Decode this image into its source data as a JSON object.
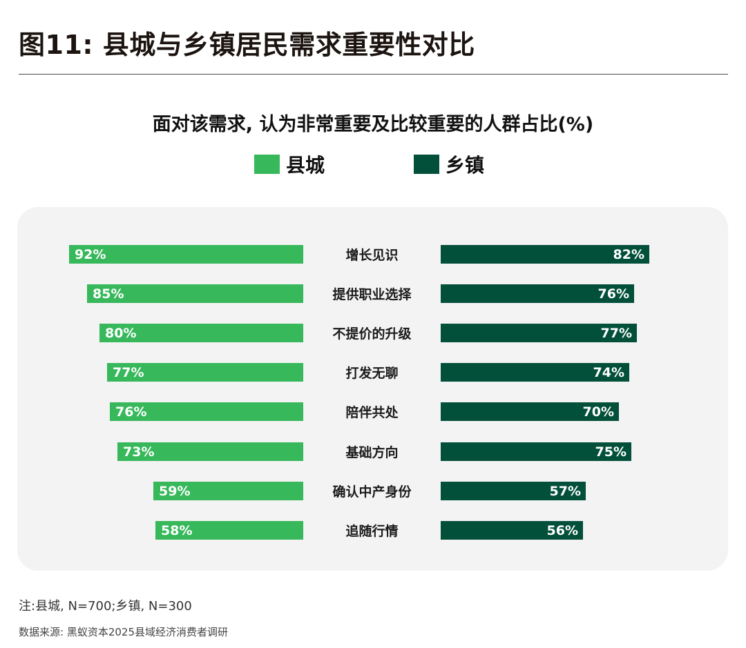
{
  "header": {
    "title": "图11: 县城与乡镇居民需求重要性对比"
  },
  "colors": {
    "county": "#37b85b",
    "township": "#03503a",
    "panel_bg": "#f3f3f3",
    "value_text": "#ffffff"
  },
  "chart_data": {
    "type": "bar",
    "orientation": "horizontal-butterfly",
    "title": "面对该需求, 认为非常重要及比较重要的人群占比(%)",
    "xlabel": "",
    "ylabel": "",
    "unit": "%",
    "grid": false,
    "legend_position": "top",
    "categories": [
      "增长见识",
      "提供职业选择",
      "不提价的升级",
      "打发无聊",
      "陪伴共处",
      "基础方向",
      "确认中产身份",
      "追随行情"
    ],
    "series": [
      {
        "name": "县城",
        "color": "#37b85b",
        "values": [
          92,
          85,
          80,
          77,
          76,
          73,
          59,
          58
        ]
      },
      {
        "name": "乡镇",
        "color": "#03503a",
        "values": [
          82,
          76,
          77,
          74,
          70,
          75,
          57,
          56
        ]
      }
    ],
    "xlim": [
      0,
      100
    ]
  },
  "legend": [
    {
      "label": "县城",
      "color": "#37b85b"
    },
    {
      "label": "乡镇",
      "color": "#03503a"
    }
  ],
  "rows": [
    {
      "label": "增长见识",
      "county": "92%",
      "township": "82%"
    },
    {
      "label": "提供职业选择",
      "county": "85%",
      "township": "76%"
    },
    {
      "label": "不提价的升级",
      "county": "80%",
      "township": "77%"
    },
    {
      "label": "打发无聊",
      "county": "77%",
      "township": "74%"
    },
    {
      "label": "陪伴共处",
      "county": "76%",
      "township": "70%"
    },
    {
      "label": "基础方向",
      "county": "73%",
      "township": "75%"
    },
    {
      "label": "确认中产身份",
      "county": "59%",
      "township": "57%"
    },
    {
      "label": "追随行情",
      "county": "58%",
      "township": "56%"
    }
  ],
  "footer": {
    "note": "注:县城, N=700;乡镇, N=300",
    "source": "数据来源: 黑蚁资本2025县域经济消费者调研"
  }
}
